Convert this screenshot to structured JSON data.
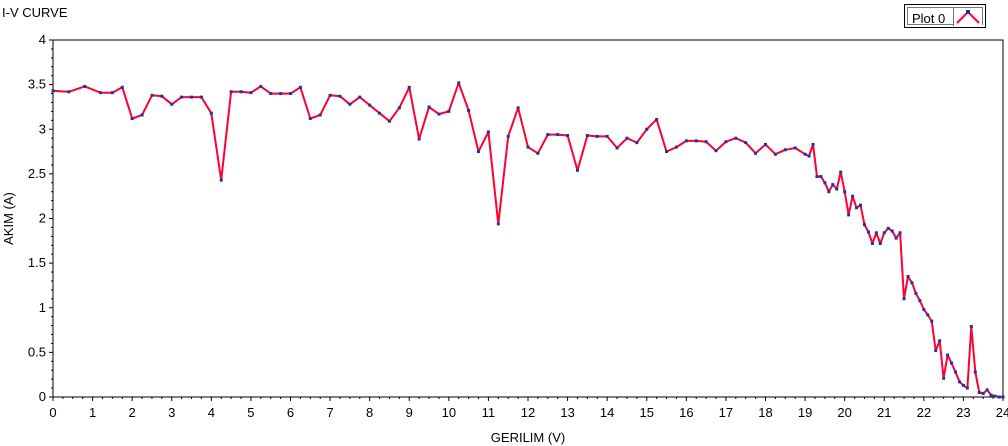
{
  "chart_data": {
    "type": "line",
    "title": "I-V CURVE",
    "xlabel": "GERILIM (V)",
    "ylabel": "AKIM (A)",
    "xlim": [
      0,
      24
    ],
    "ylim": [
      0,
      4
    ],
    "xticks": [
      "0",
      "1",
      "2",
      "3",
      "4",
      "5",
      "6",
      "7",
      "8",
      "9",
      "10",
      "11",
      "12",
      "13",
      "14",
      "15",
      "16",
      "17",
      "18",
      "19",
      "20",
      "21",
      "22",
      "23",
      "24"
    ],
    "yticks": [
      "0",
      "0.5",
      "1",
      "1.5",
      "2",
      "2.5",
      "3",
      "3.5",
      "4"
    ],
    "grid": false,
    "legend": "top-right",
    "colors": {
      "line": "#ff0033",
      "marker": "#2233aa"
    },
    "series": [
      {
        "name": "Plot 0",
        "x": [
          0,
          0.4,
          0.8,
          1.2,
          1.5,
          1.75,
          2.0,
          2.25,
          2.5,
          2.75,
          3.0,
          3.25,
          3.5,
          3.75,
          4.0,
          4.25,
          4.5,
          4.75,
          5.0,
          5.25,
          5.5,
          5.75,
          6.0,
          6.25,
          6.5,
          6.75,
          7.0,
          7.25,
          7.5,
          7.75,
          8.0,
          8.25,
          8.5,
          8.75,
          9.0,
          9.25,
          9.5,
          9.75,
          10.0,
          10.25,
          10.5,
          10.75,
          11.0,
          11.25,
          11.5,
          11.75,
          12.0,
          12.25,
          12.5,
          12.75,
          13.0,
          13.25,
          13.5,
          13.75,
          14.0,
          14.25,
          14.5,
          14.75,
          15.0,
          15.25,
          15.5,
          15.75,
          16.0,
          16.25,
          16.5,
          16.75,
          17.0,
          17.25,
          17.5,
          17.75,
          18.0,
          18.25,
          18.5,
          18.75,
          19.0,
          19.1,
          19.2,
          19.3,
          19.4,
          19.5,
          19.6,
          19.7,
          19.8,
          19.9,
          20.0,
          20.1,
          20.2,
          20.3,
          20.4,
          20.5,
          20.6,
          20.7,
          20.8,
          20.9,
          21.0,
          21.1,
          21.2,
          21.3,
          21.4,
          21.5,
          21.6,
          21.7,
          21.8,
          21.9,
          22.0,
          22.1,
          22.2,
          22.3,
          22.4,
          22.5,
          22.6,
          22.7,
          22.8,
          22.9,
          23.0,
          23.1,
          23.2,
          23.3,
          23.4,
          23.5,
          23.6,
          23.7,
          23.8,
          23.9,
          24.0
        ],
        "y": [
          3.43,
          3.42,
          3.48,
          3.41,
          3.41,
          3.47,
          3.12,
          3.16,
          3.38,
          3.37,
          3.28,
          3.36,
          3.36,
          3.36,
          3.18,
          2.43,
          3.42,
          3.42,
          3.41,
          3.48,
          3.4,
          3.4,
          3.4,
          3.47,
          3.12,
          3.16,
          3.38,
          3.37,
          3.28,
          3.36,
          3.27,
          3.18,
          3.09,
          3.24,
          3.47,
          2.89,
          3.25,
          3.17,
          3.2,
          3.52,
          3.21,
          2.75,
          2.97,
          1.94,
          2.92,
          3.24,
          2.8,
          2.73,
          2.94,
          2.94,
          2.93,
          2.54,
          2.93,
          2.92,
          2.92,
          2.79,
          2.9,
          2.85,
          3.0,
          3.11,
          2.75,
          2.8,
          2.87,
          2.87,
          2.86,
          2.76,
          2.86,
          2.9,
          2.85,
          2.73,
          2.83,
          2.72,
          2.77,
          2.79,
          2.72,
          2.7,
          2.83,
          2.47,
          2.47,
          2.4,
          2.3,
          2.38,
          2.33,
          2.52,
          2.3,
          2.04,
          2.25,
          2.12,
          2.15,
          1.93,
          1.85,
          1.72,
          1.84,
          1.72,
          1.84,
          1.89,
          1.86,
          1.78,
          1.84,
          1.1,
          1.35,
          1.28,
          1.16,
          1.08,
          0.98,
          0.92,
          0.85,
          0.52,
          0.63,
          0.21,
          0.47,
          0.38,
          0.28,
          0.17,
          0.13,
          0.1,
          0.79,
          0.28,
          0.05,
          0.04,
          0.08,
          0.02,
          0.01,
          0.0,
          0.0
        ]
      }
    ]
  }
}
